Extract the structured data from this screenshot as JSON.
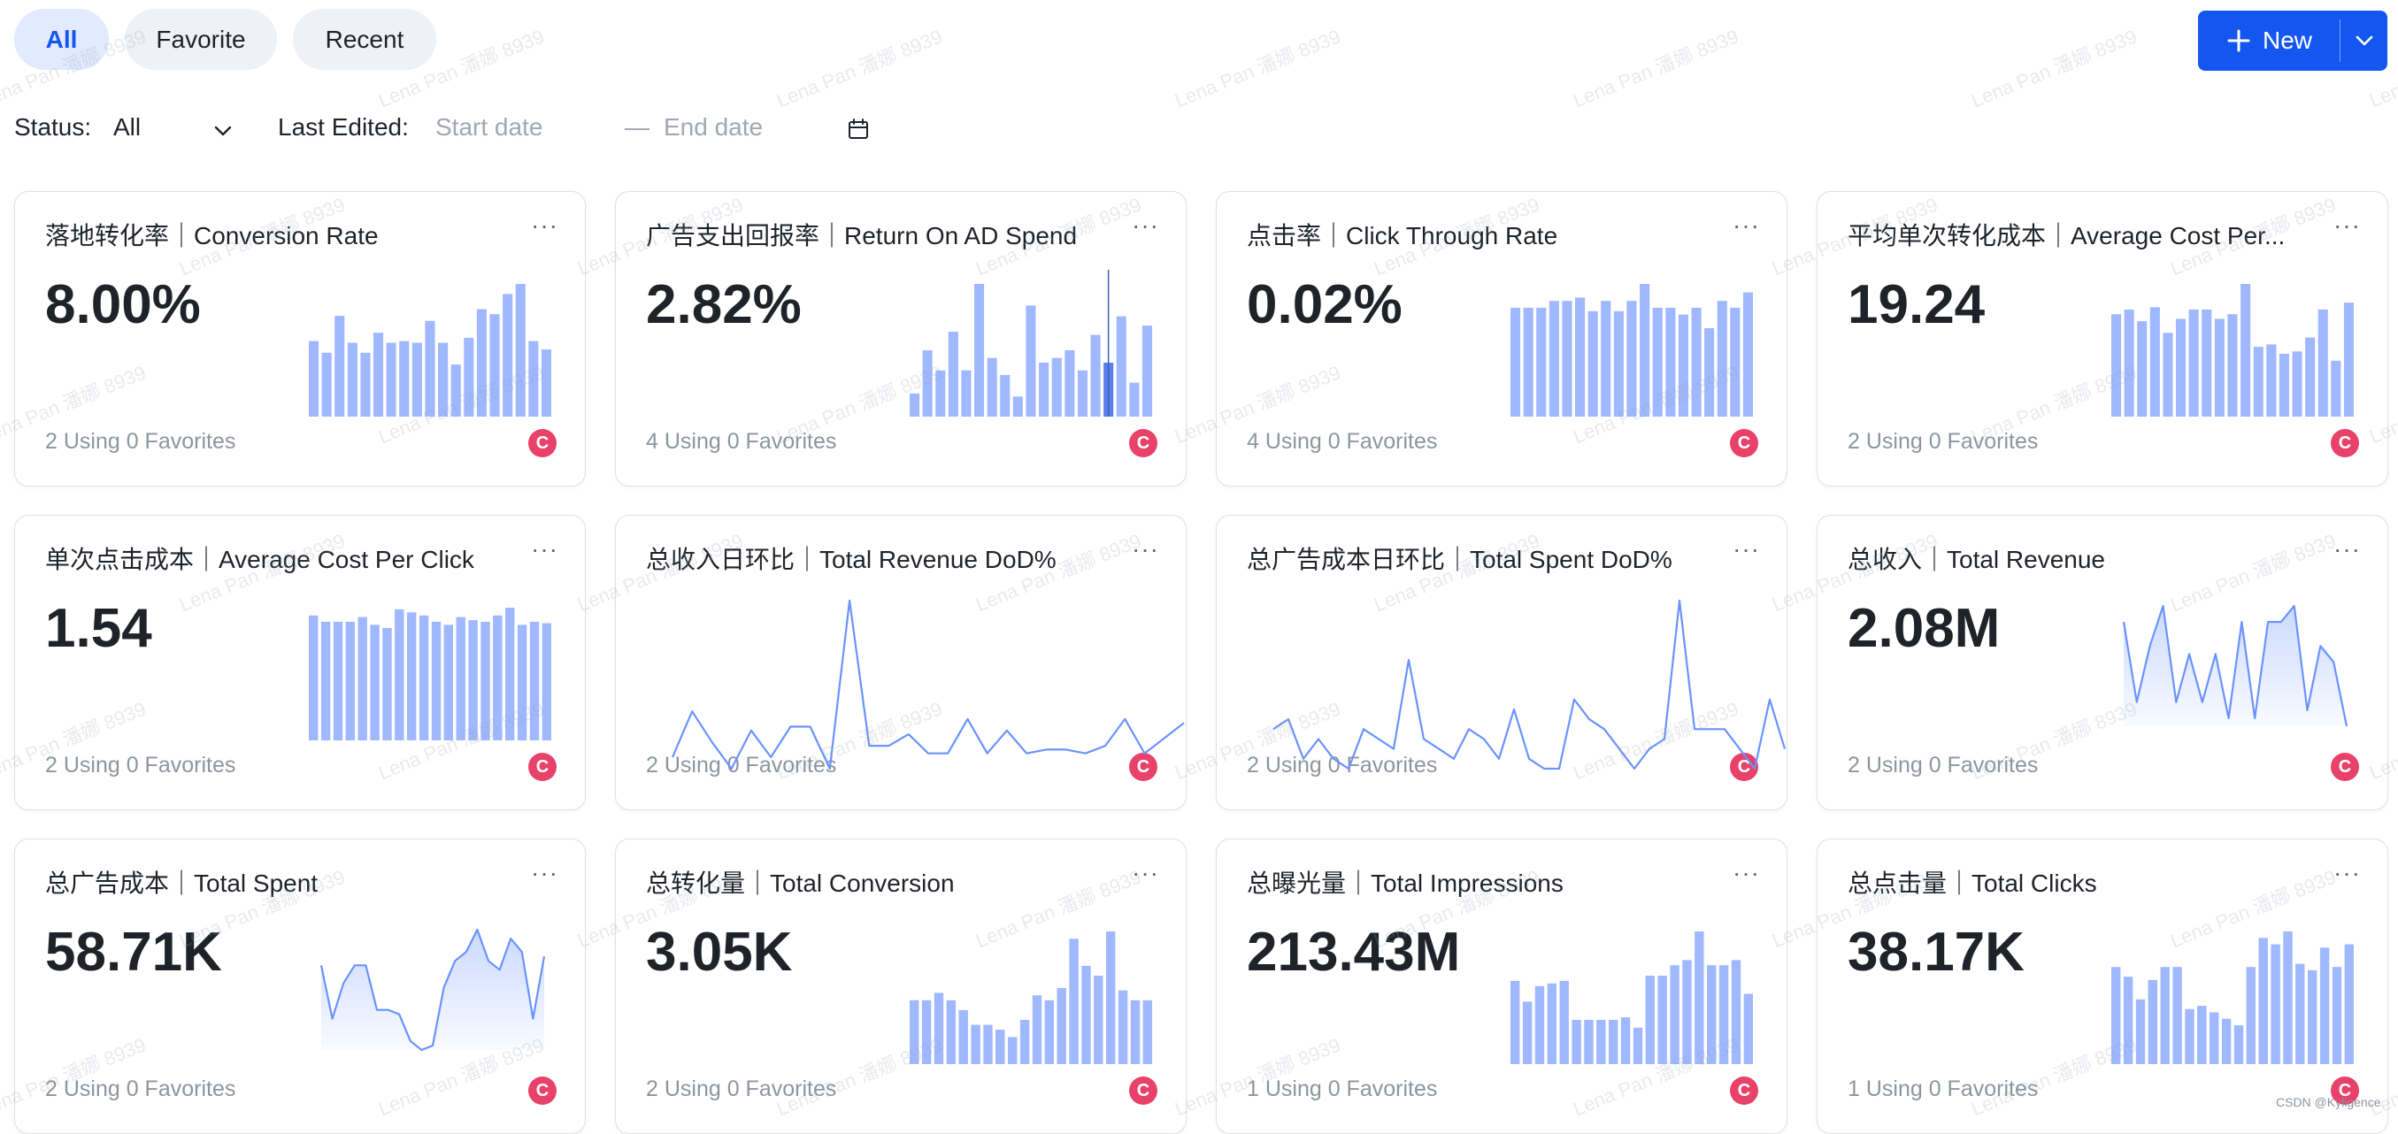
{
  "tabs": [
    {
      "label": "All",
      "active": true
    },
    {
      "label": "Favorite",
      "active": false
    },
    {
      "label": "Recent",
      "active": false
    }
  ],
  "new_button": {
    "label": "New",
    "icon": "plus-icon",
    "caret_icon": "chevron-down-icon"
  },
  "filters": {
    "status_label": "Status:",
    "status_value": "All",
    "last_edited_label": "Last Edited:",
    "start_placeholder": "Start date",
    "separator": "—",
    "end_placeholder": "End date",
    "calendar_icon": "calendar-icon"
  },
  "watermark": "Lena Pan 潘娜 8939",
  "credit": "CSDN @Kyligence",
  "colors": {
    "accent": "#1456f0",
    "bar": "#9fb8ff",
    "line": "#6a93ff",
    "avatar": "#e8416a"
  },
  "cards": [
    {
      "title": "落地转化率｜Conversion Rate",
      "value": "8.00%",
      "footer": "2 Using 0 Favorites",
      "avatar": "C",
      "chart_data": {
        "type": "bar",
        "values": [
          45,
          38,
          60,
          44,
          38,
          50,
          44,
          45,
          44,
          57,
          44,
          31,
          47,
          64,
          61,
          73,
          79,
          45,
          40
        ]
      }
    },
    {
      "title": "广告支出回报率｜Return On AD Spend",
      "value": "2.82%",
      "footer": "4 Using 0 Favorites",
      "avatar": "C",
      "chart_data": {
        "type": "bar",
        "values": [
          15,
          43,
          30,
          55,
          30,
          86,
          38,
          27,
          13,
          72,
          35,
          38,
          43,
          30,
          53,
          35,
          65,
          22,
          59
        ],
        "highlight": 15
      }
    },
    {
      "title": "点击率｜Click Through Rate",
      "value": "0.02%",
      "footer": "4 Using 0 Favorites",
      "avatar": "C",
      "chart_data": {
        "type": "bar",
        "values": [
          64,
          64,
          64,
          68,
          68,
          70,
          62,
          68,
          62,
          68,
          78,
          64,
          64,
          60,
          64,
          52,
          68,
          64,
          73
        ]
      }
    },
    {
      "title": "平均单次转化成本｜Average Cost Per...",
      "value": "19.24",
      "footer": "2 Using 0 Favorites",
      "avatar": "C",
      "chart_data": {
        "type": "bar",
        "values": [
          44,
          46,
          41,
          47,
          36,
          42,
          46,
          46,
          42,
          44,
          57,
          30,
          31,
          27,
          28,
          34,
          46,
          24,
          49
        ]
      }
    },
    {
      "title": "单次点击成本｜Average Cost Per Click",
      "value": "1.54",
      "footer": "2 Using 0 Favorites",
      "avatar": "C",
      "chart_data": {
        "type": "bar",
        "values": [
          80,
          76,
          76,
          76,
          79,
          74,
          72,
          84,
          82,
          80,
          76,
          74,
          79,
          77,
          76,
          80,
          85,
          74,
          76,
          75
        ]
      }
    },
    {
      "title": "总收入日环比｜Total Revenue DoD%",
      "value": "",
      "footer": "2 Using 0 Favorites",
      "avatar": "C",
      "chart_data": {
        "type": "line",
        "values": [
          0,
          12,
          4,
          -3,
          7,
          0,
          8,
          8,
          -3,
          41,
          3,
          3,
          6,
          1,
          1,
          10,
          1,
          7,
          1,
          2,
          2,
          1,
          3,
          10,
          1,
          5,
          9
        ]
      }
    },
    {
      "title": "总广告成本日环比｜Total Spent DoD%",
      "value": "",
      "footer": "2 Using 0 Favorites",
      "avatar": "C",
      "chart_data": {
        "type": "line",
        "values": [
          3,
          4,
          0,
          2,
          0,
          -1,
          3,
          2,
          1,
          10,
          2,
          1,
          0,
          3,
          2,
          0,
          5,
          0,
          -1,
          -1,
          6,
          4,
          3,
          1,
          -1,
          1,
          2,
          16,
          3,
          3,
          3,
          1,
          -1,
          6,
          1
        ]
      }
    },
    {
      "title": "总收入｜Total Revenue",
      "value": "2.08M",
      "footer": "2 Using 0 Favorites",
      "avatar": "C",
      "chart_data": {
        "type": "area",
        "values": [
          30,
          20,
          27,
          32,
          20,
          26,
          20,
          26,
          18,
          30,
          18,
          30,
          30,
          32,
          19,
          27,
          25,
          17
        ]
      }
    },
    {
      "title": "总广告成本｜Total Spent",
      "value": "58.71K",
      "footer": "2 Using 0 Favorites",
      "avatar": "C",
      "chart_data": {
        "type": "area",
        "values": [
          30,
          18,
          26,
          30,
          30,
          20,
          20,
          19,
          13,
          11,
          12,
          25,
          31,
          33,
          38,
          31,
          29,
          36,
          33,
          18,
          32
        ]
      }
    },
    {
      "title": "总转化量｜Total Conversion",
      "value": "3.05K",
      "footer": "2 Using 0 Favorites",
      "avatar": "C",
      "chart_data": {
        "type": "bar",
        "values": [
          26,
          26,
          29,
          26,
          22,
          16,
          16,
          14,
          11,
          18,
          28,
          26,
          31,
          51,
          40,
          36,
          54,
          30,
          26,
          26
        ]
      }
    },
    {
      "title": "总曝光量｜Total Impressions",
      "value": "213.43M",
      "footer": "1 Using 0 Favorites",
      "avatar": "C",
      "chart_data": {
        "type": "bar",
        "values": [
          32,
          24,
          30,
          31,
          32,
          17,
          17,
          17,
          17,
          18,
          14,
          34,
          34,
          38,
          40,
          51,
          38,
          38,
          40,
          27
        ]
      }
    },
    {
      "title": "总点击量｜Total Clicks",
      "value": "38.17K",
      "footer": "1 Using 0 Favorites",
      "avatar": "C",
      "chart_data": {
        "type": "bar",
        "values": [
          30,
          27,
          20,
          26,
          30,
          30,
          17,
          18,
          16,
          14,
          12,
          30,
          39,
          37,
          41,
          31,
          29,
          36,
          30,
          37
        ]
      }
    }
  ]
}
